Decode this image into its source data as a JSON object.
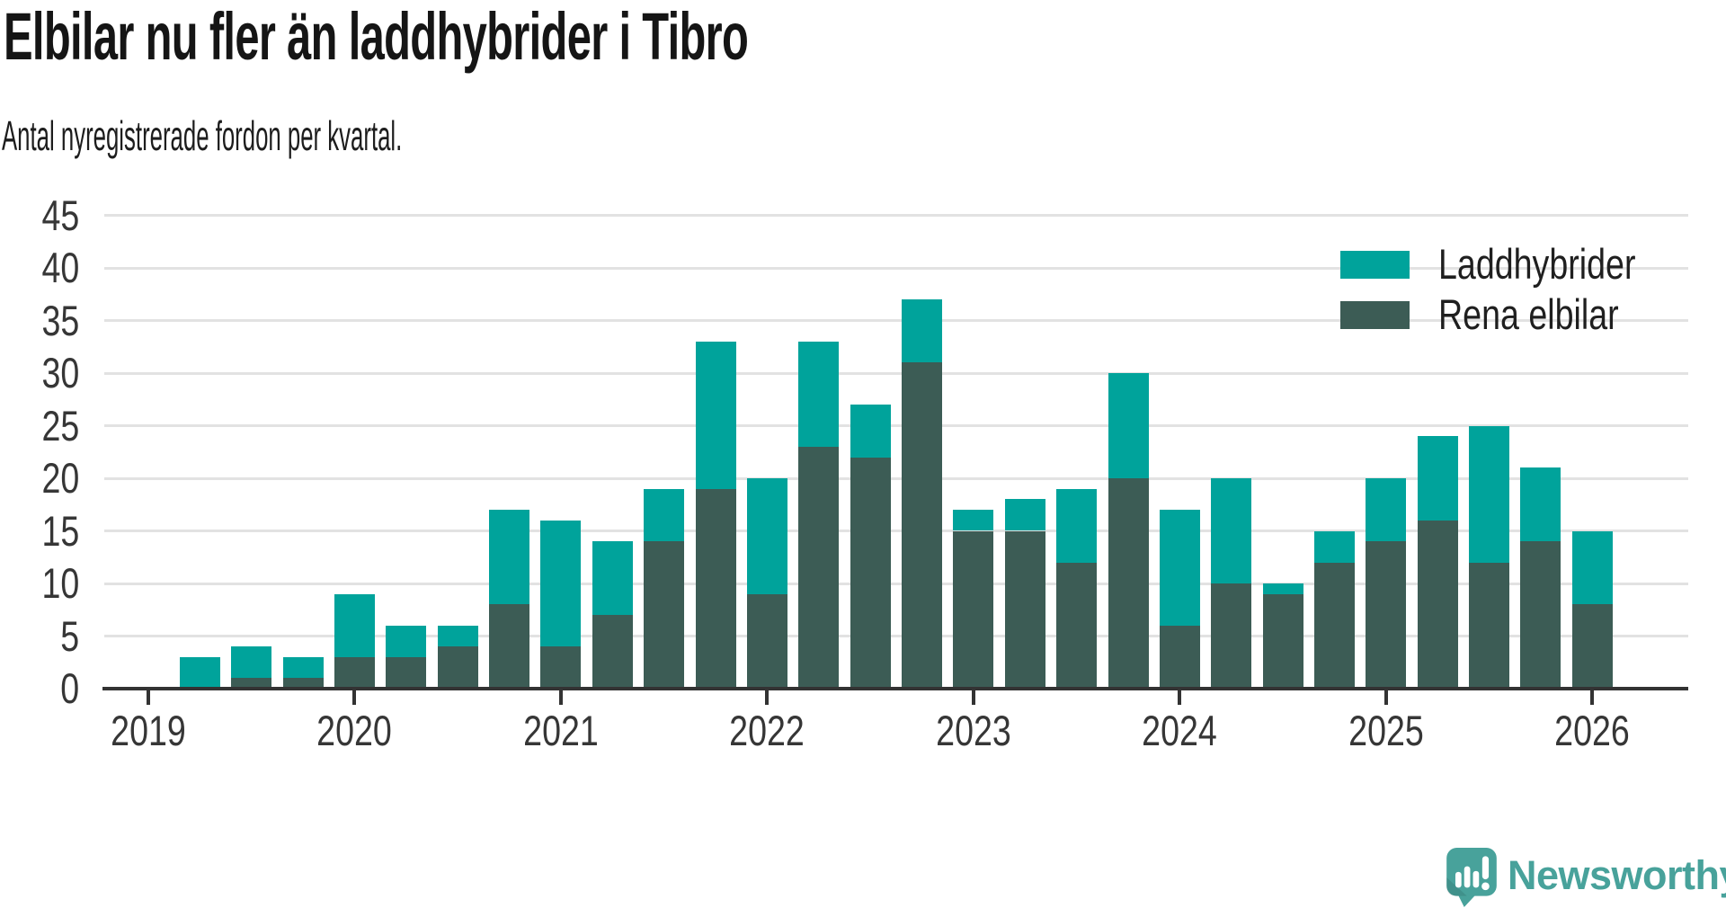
{
  "title": "Elbilar nu fler än laddhybrider i Tibro",
  "subtitle": "Antal nyregistrerade fordon per kvartal.",
  "colors": {
    "laddhybrider": "#00a39b",
    "rena_elbilar": "#3c5c55",
    "axis": "#333333",
    "gridline": "#e2e2e2",
    "text": "#1d1d1d",
    "brand": "#48a29b"
  },
  "legend": [
    {
      "label": "Laddhybrider",
      "color": "#00a39b"
    },
    {
      "label": "Rena elbilar",
      "color": "#3c5c55"
    }
  ],
  "branding": {
    "wordmark": "Newsworthy",
    "icon": "newsworthy-speech-bubble-chart-icon",
    "color": "#48a29b"
  },
  "chart_data": {
    "type": "bar",
    "stacked": true,
    "title": "Elbilar nu fler än laddhybrider i Tibro",
    "subtitle": "Antal nyregistrerade fordon per kvartal.",
    "xlabel": "",
    "ylabel": "",
    "ylim": [
      0,
      45
    ],
    "y_ticks": [
      0,
      5,
      10,
      15,
      20,
      25,
      30,
      35,
      40,
      45
    ],
    "x_tick_labels": [
      "2019",
      "2020",
      "2021",
      "2022",
      "2023",
      "2024",
      "2025",
      "2026"
    ],
    "grid": true,
    "legend_position": "top-right",
    "categories": [
      "2019-Q2",
      "2019-Q3",
      "2019-Q4",
      "2020-Q1",
      "2020-Q2",
      "2020-Q3",
      "2020-Q4",
      "2021-Q1",
      "2021-Q2",
      "2021-Q3",
      "2021-Q4",
      "2022-Q1",
      "2022-Q2",
      "2022-Q3",
      "2022-Q4",
      "2023-Q1",
      "2023-Q2",
      "2023-Q3",
      "2023-Q4",
      "2024-Q1",
      "2024-Q2",
      "2024-Q3",
      "2024-Q4",
      "2025-Q1",
      "2025-Q2",
      "2025-Q3",
      "2025-Q4",
      "2026-Q1"
    ],
    "series": [
      {
        "name": "Rena elbilar",
        "color": "#3c5c55",
        "stack_order": "bottom",
        "values": [
          0,
          1,
          1,
          3,
          3,
          4,
          8,
          4,
          7,
          14,
          19,
          9,
          23,
          22,
          31,
          15,
          15,
          12,
          20,
          6,
          10,
          9,
          12,
          14,
          16,
          12,
          14,
          8
        ]
      },
      {
        "name": "Laddhybrider",
        "color": "#00a39b",
        "stack_order": "top",
        "values": [
          3,
          3,
          2,
          6,
          3,
          2,
          9,
          12,
          7,
          5,
          14,
          11,
          10,
          5,
          6,
          2,
          3,
          7,
          10,
          11,
          10,
          1,
          3,
          6,
          8,
          13,
          7,
          7
        ]
      }
    ],
    "totals": [
      3,
      4,
      3,
      9,
      6,
      6,
      17,
      16,
      14,
      19,
      33,
      20,
      33,
      27,
      37,
      17,
      18,
      19,
      30,
      17,
      20,
      10,
      15,
      20,
      24,
      25,
      21,
      15
    ]
  }
}
